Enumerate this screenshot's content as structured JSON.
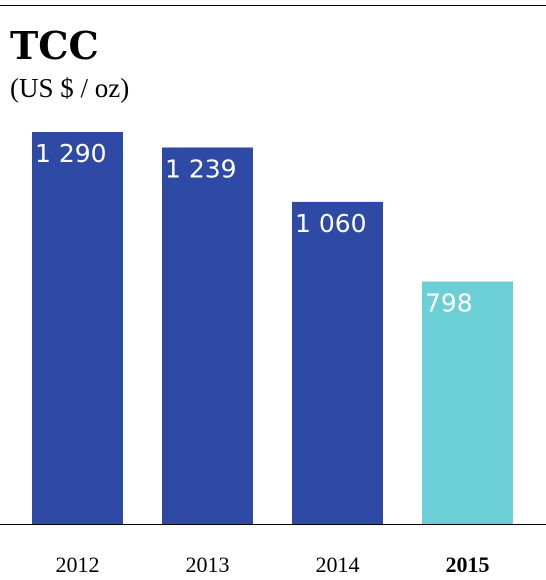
{
  "title": "TCC",
  "subtitle": "(US $ / oz)",
  "chart_data": {
    "type": "bar",
    "categories": [
      "2012",
      "2013",
      "2014",
      "2015"
    ],
    "values": [
      1290,
      1239,
      1060,
      798
    ],
    "value_labels": [
      "1 290",
      "1 239",
      "1 060",
      "798"
    ],
    "highlight_category": "2015",
    "colors": {
      "default": "#2f4aa5",
      "highlight": "#6ccfd6"
    },
    "title": "TCC",
    "subtitle": "(US $ / oz)",
    "xlabel": "",
    "ylabel": "",
    "ylim": [
      0,
      1290
    ],
    "grid": false,
    "legend": "none"
  }
}
